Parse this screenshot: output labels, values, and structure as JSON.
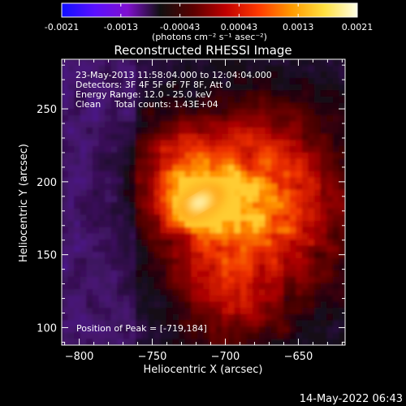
{
  "colorbar": {
    "ticks": [
      "-0.0021",
      "-0.0013",
      "-0.00043",
      "0.00043",
      "0.0013",
      "0.0021"
    ],
    "unit_label": "(photons cm⁻² s⁻¹ asec⁻²)",
    "colors": [
      "#1010ff",
      "#5a10ff",
      "#8010d0",
      "#101010",
      "#5a0000",
      "#c00000",
      "#ff3a00",
      "#ff9a00",
      "#ffe040",
      "#ffffe6"
    ]
  },
  "chart_data": {
    "type": "heatmap",
    "title": "Reconstructed RHESSI Image",
    "xlabel": "Heliocentric X (arcsec)",
    "ylabel": "Heliocentric Y (arcsec)",
    "xlim": [
      -812,
      -618
    ],
    "ylim": [
      88,
      284
    ],
    "xticks": [
      -800,
      -750,
      -700,
      -650
    ],
    "yticks": [
      100,
      150,
      200,
      250
    ],
    "xtick_labels": [
      "−800",
      "−750",
      "−700",
      "−650"
    ],
    "ytick_labels": [
      "100",
      "150",
      "200",
      "250"
    ],
    "peak": [
      -719,
      184
    ],
    "clim": [
      -0.0021,
      0.0021
    ],
    "annotations": {
      "time": "23-May-2013 11:58:04.000 to 12:04:04.000",
      "detectors": "Detectors: 3F 4F 5F 6F 7F 8F, Att 0",
      "energy": "Energy Range: 12.0 - 25.0 keV",
      "method": "Clean",
      "counts": "Total counts: 1.43E+04",
      "peak_label": "Position of Peak = [-719,184]"
    }
  },
  "footer": {
    "date": "14-May-2022 06:43"
  }
}
